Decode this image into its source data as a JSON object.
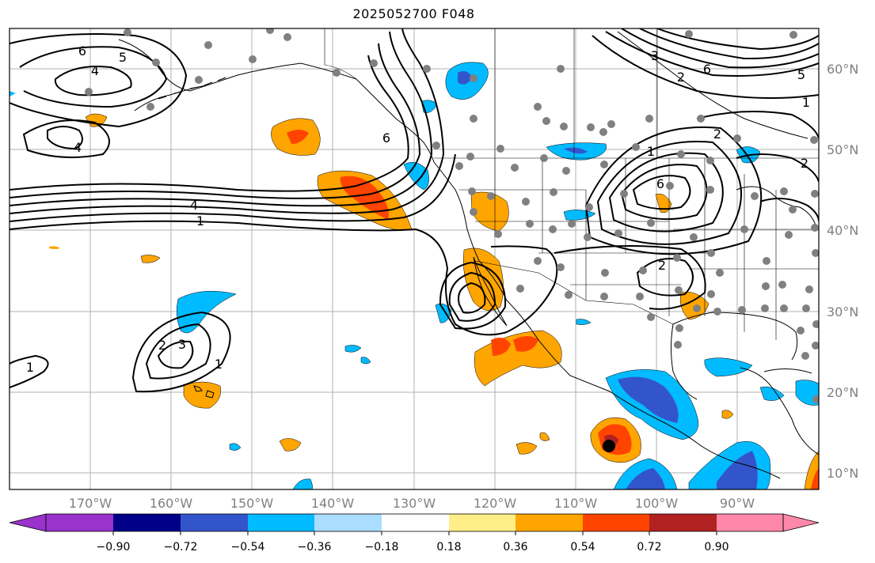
{
  "title": "2025052700 F048",
  "lon_ticks": [
    "170°W",
    "160°W",
    "150°W",
    "140°W",
    "130°W",
    "120°W",
    "110°W",
    "100°W",
    "90°W"
  ],
  "lat_ticks": [
    "60°N",
    "50°N",
    "40°N",
    "30°N",
    "20°N",
    "10°N"
  ],
  "colorbar": {
    "colors": [
      "#9933cc",
      "#000088",
      "#3355cc",
      "#00bbff",
      "#aaddff",
      "#ffffff",
      "#ffee88",
      "#ffa500",
      "#ff4400",
      "#b22222",
      "#ff88aa"
    ],
    "labels": [
      "−0.90",
      "−0.72",
      "−0.54",
      "−0.36",
      "−0.18",
      "0.18",
      "0.36",
      "0.54",
      "0.72",
      "0.90"
    ]
  },
  "contour_labels": [
    "6",
    "5",
    "4",
    "4",
    "1",
    "4",
    "6",
    "3",
    "2",
    "6",
    "5",
    "1",
    "2",
    "1",
    "2",
    "6",
    "2",
    "1",
    "2",
    "1",
    "3"
  ]
}
